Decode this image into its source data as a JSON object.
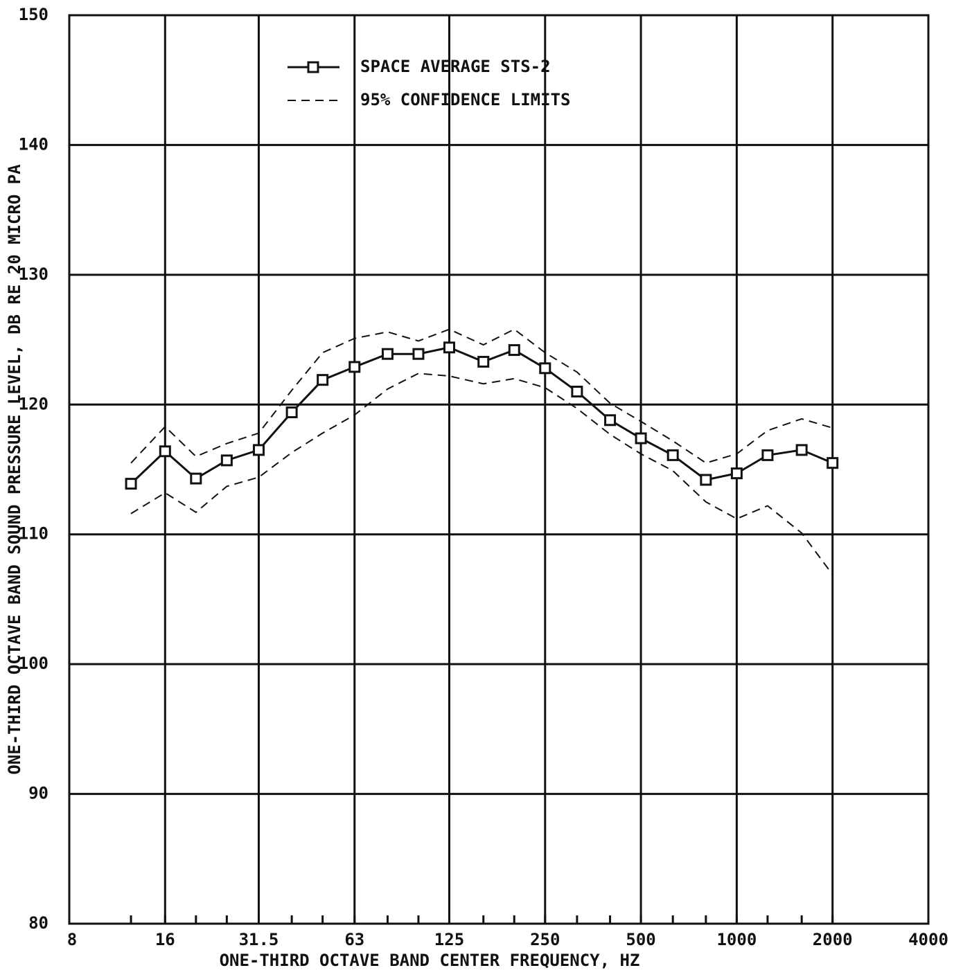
{
  "chart_data": {
    "type": "line",
    "x_label": "ONE-THIRD OCTAVE BAND CENTER FREQUENCY, HZ",
    "y_label": "ONE-THIRD OCTAVE BAND SOUND PRESSURE LEVEL, DB RE 20 MICRO PA",
    "x": [
      12.5,
      16,
      20,
      25,
      31.5,
      40,
      50,
      63,
      80,
      100,
      125,
      160,
      200,
      250,
      315,
      400,
      500,
      630,
      800,
      1000,
      1250,
      1600,
      2000
    ],
    "series": [
      {
        "name": "SPACE AVERAGE STS-2",
        "color": "#111111",
        "style": "solid",
        "marker": "square",
        "values": [
          113.9,
          116.4,
          114.3,
          115.7,
          116.5,
          119.4,
          121.9,
          122.9,
          123.9,
          123.9,
          124.4,
          123.3,
          124.2,
          122.8,
          121.0,
          118.8,
          117.4,
          116.1,
          114.2,
          114.7,
          116.1,
          116.5,
          115.5
        ]
      },
      {
        "name": "95% CONFIDENCE LIMITS",
        "color": "#111111",
        "style": "dashed",
        "values": [
          115.5,
          118.3,
          116.0,
          117.0,
          117.8,
          121.1,
          124.0,
          125.1,
          125.6,
          124.9,
          125.8,
          124.6,
          125.8,
          124.0,
          122.5,
          120.1,
          118.7,
          117.2,
          115.5,
          116.2,
          118.0,
          118.9,
          118.2
        ]
      },
      {
        "color": "#111111",
        "style": "dashed",
        "values": [
          111.6,
          113.2,
          111.7,
          113.7,
          114.4,
          116.3,
          117.8,
          119.2,
          121.2,
          122.4,
          122.2,
          121.6,
          122.0,
          121.3,
          119.7,
          117.7,
          116.2,
          114.9,
          112.5,
          111.2,
          112.2,
          110.1,
          106.9
        ]
      }
    ],
    "x_scale": "log",
    "xlim": [
      8,
      4000
    ],
    "xticks": [
      8,
      16,
      31.5,
      63,
      125,
      250,
      500,
      1000,
      2000,
      4000
    ],
    "ylim": [
      80,
      150
    ],
    "yticks": [
      80,
      90,
      100,
      110,
      120,
      130,
      140,
      150
    ],
    "grid": true,
    "legend": "top-center"
  }
}
